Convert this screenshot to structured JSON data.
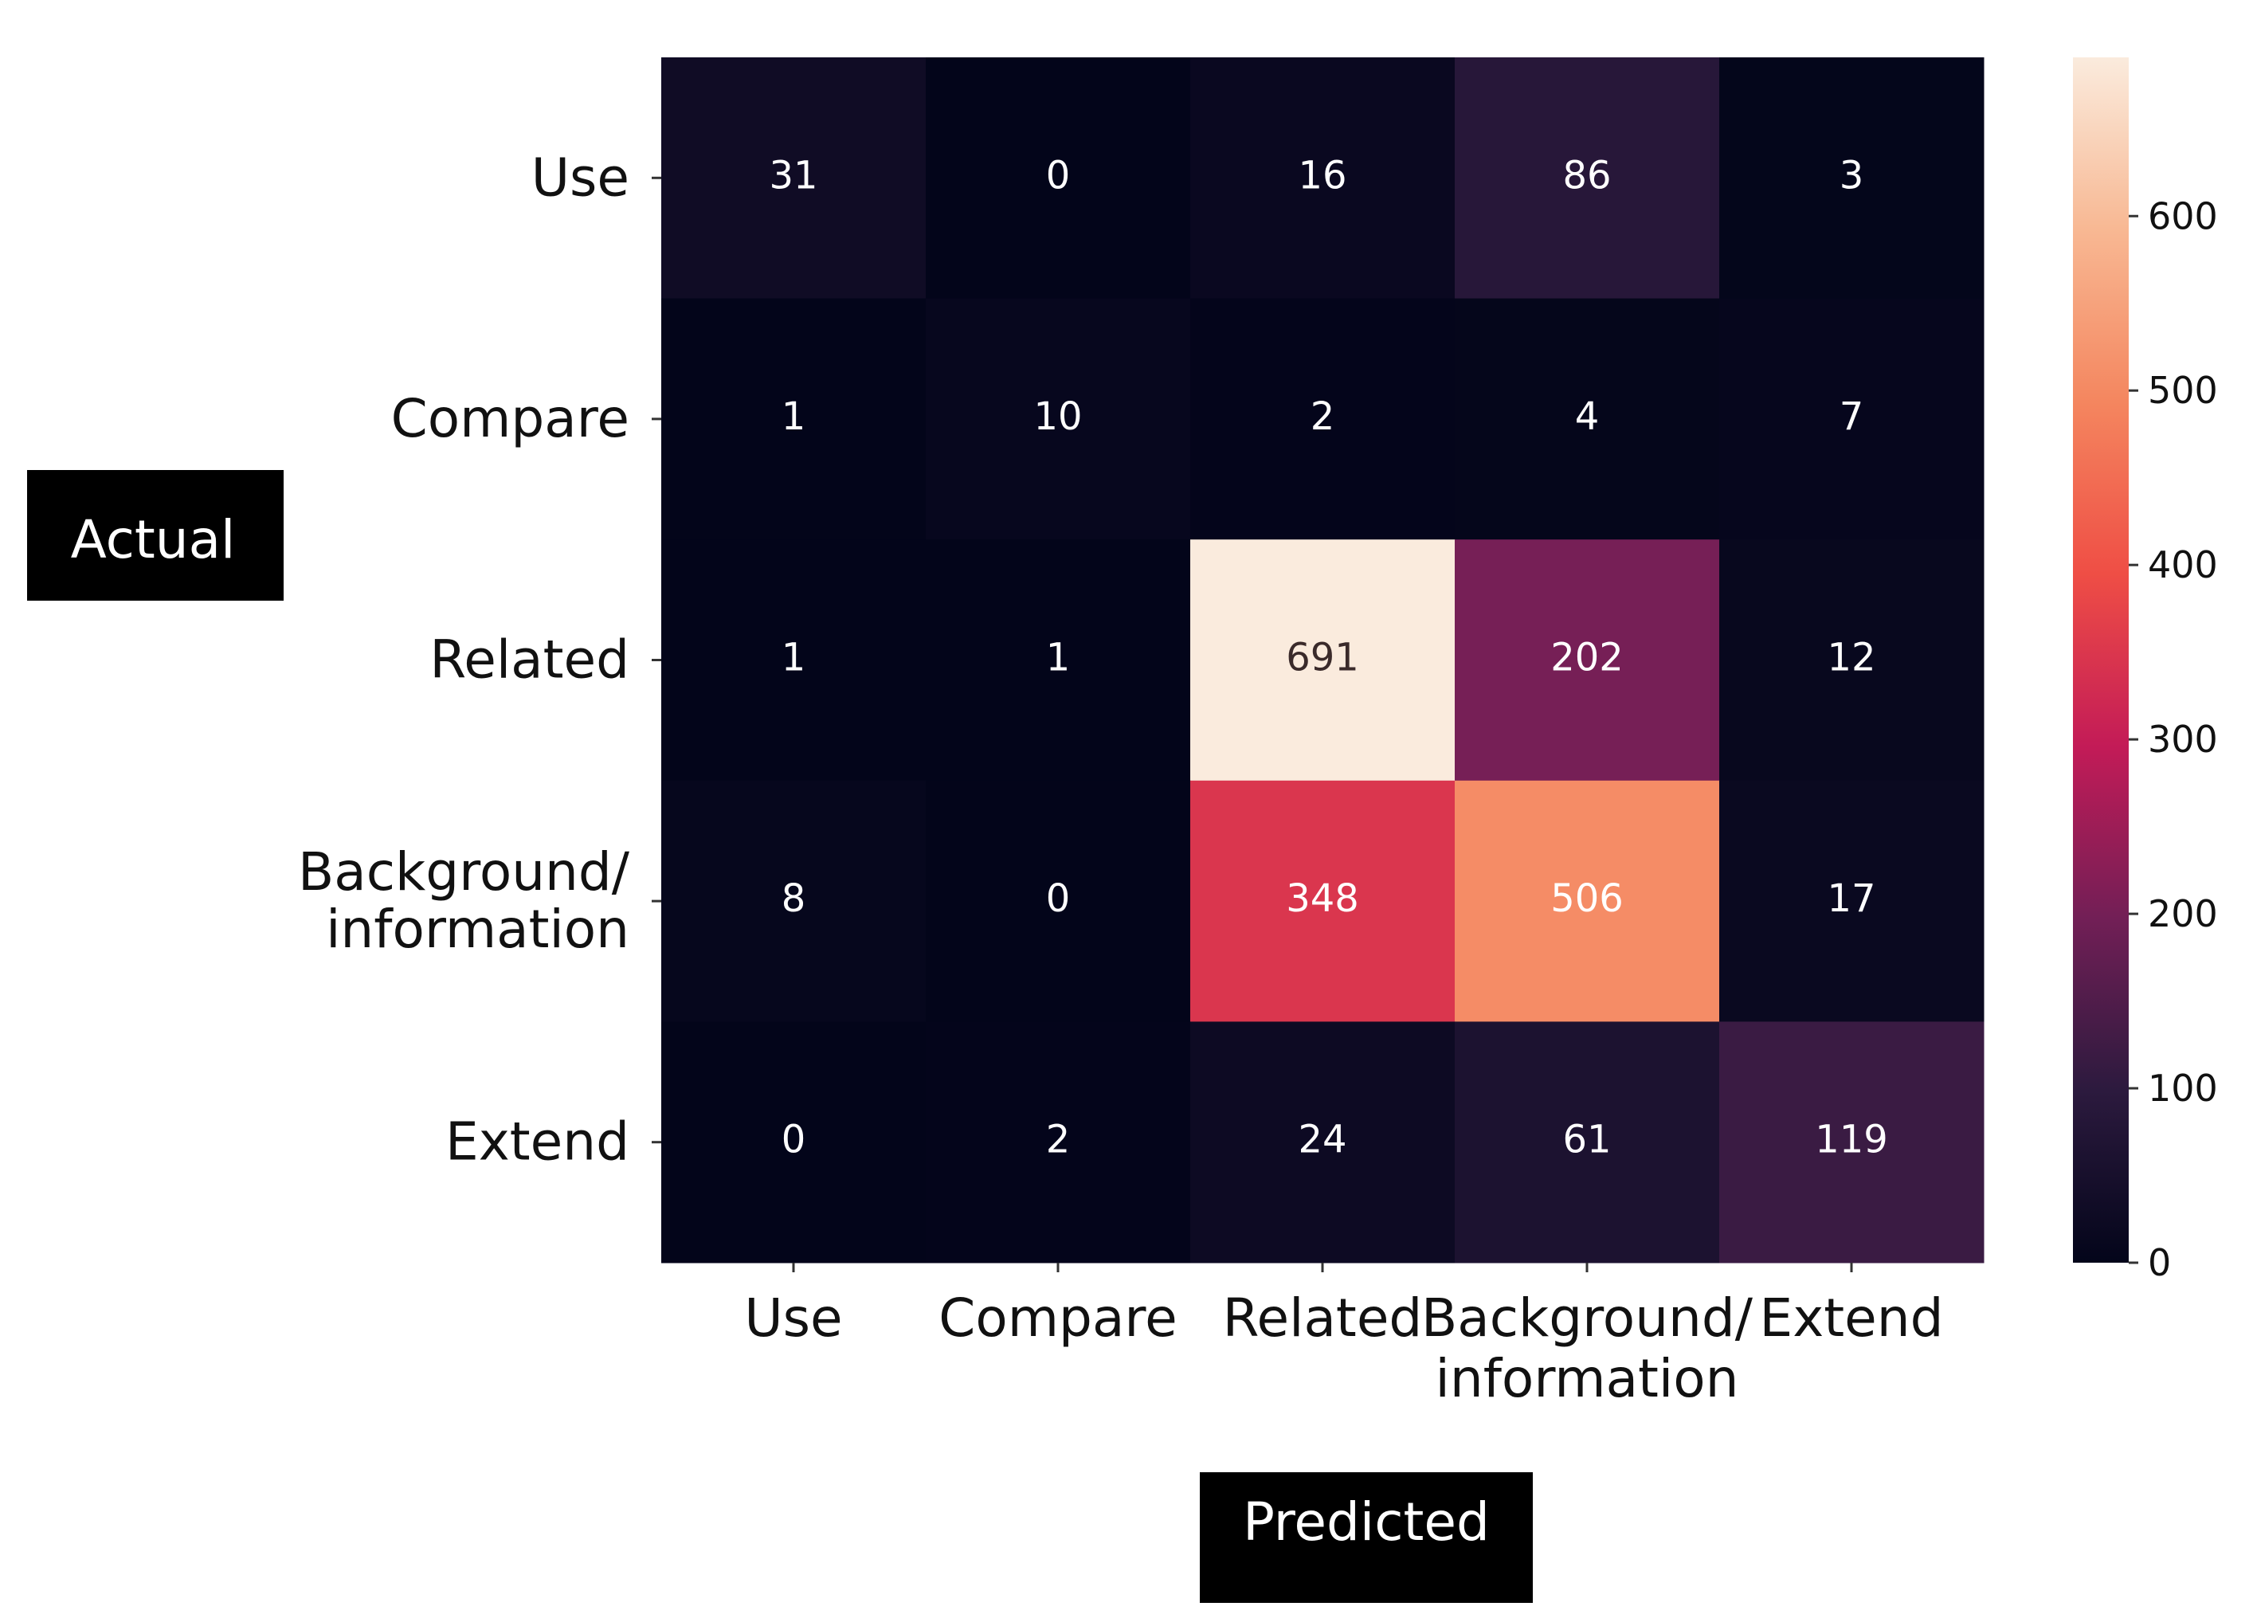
{
  "chart_data": {
    "type": "heatmap",
    "title": "",
    "xlabel": "Predicted",
    "ylabel": "Actual",
    "rows": [
      "Use",
      "Compare",
      "Related",
      "Background/\ninformation",
      "Extend"
    ],
    "cols": [
      "Use",
      "Compare",
      "Related",
      "Background/\ninformation",
      "Extend"
    ],
    "values": [
      [
        31,
        0,
        16,
        86,
        3
      ],
      [
        1,
        10,
        2,
        4,
        7
      ],
      [
        1,
        1,
        691,
        202,
        12
      ],
      [
        8,
        0,
        348,
        506,
        17
      ],
      [
        0,
        2,
        24,
        61,
        119
      ]
    ],
    "colorbar": {
      "min": 0,
      "max": 691,
      "ticks": [
        0,
        100,
        200,
        300,
        400,
        500,
        600
      ],
      "colormap": [
        "#03051A",
        "#2C1A3E",
        "#721F56",
        "#C31B57",
        "#EF4E45",
        "#F4865F",
        "#F8B893",
        "#FAEBDD"
      ]
    },
    "legend": "colorbar-right"
  }
}
